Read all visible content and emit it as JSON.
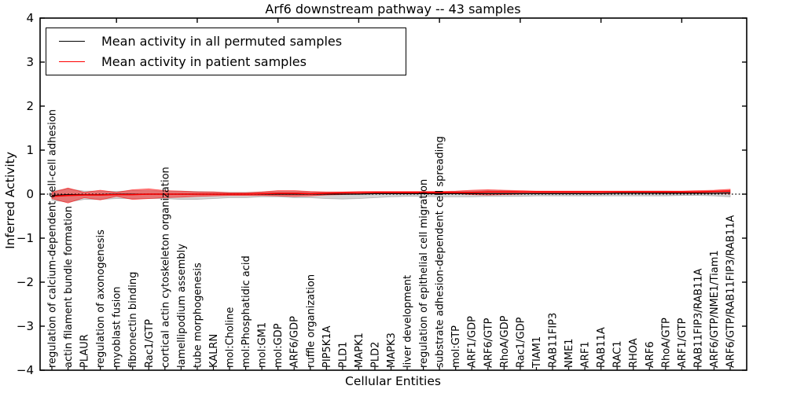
{
  "title": "Arf6 downstream pathway -- 43 samples",
  "axes": {
    "x_label": "Cellular Entities",
    "y_label": "Inferred Activity",
    "y_tick_labels": [
      "4",
      "3",
      "2",
      "1",
      "0",
      "−1",
      "−2",
      "−3",
      "−4"
    ]
  },
  "legend": {
    "items": [
      {
        "label": "Mean activity in all permuted samples",
        "color": "#000000"
      },
      {
        "label": "Mean activity in patient samples",
        "color": "#ff0000"
      }
    ]
  },
  "colors": {
    "permuted_line": "#000000",
    "patient_line": "#ff0000",
    "permuted_band": "#808080",
    "patient_band": "#ff0000",
    "zero_line": "#000000",
    "frame": "#000000",
    "background": "#ffffff"
  },
  "chart_data": {
    "type": "line",
    "title": "Arf6 downstream pathway -- 43 samples",
    "xlabel": "Cellular Entities",
    "ylabel": "Inferred Activity",
    "ylim": [
      -4,
      4
    ],
    "grid": false,
    "legend_position": "upper left",
    "zero_line": {
      "y": 0,
      "style": "dotted"
    },
    "categories": [
      "regulation of calcium-dependent cell-cell adhesion",
      "actin filament bundle formation",
      "PLAUR",
      "regulation of axonogenesis",
      "myoblast fusion",
      "fibronectin binding",
      "Rac1/GTP",
      "cortical actin cytoskeleton organization",
      "lamellipodium assembly",
      "tube morphogenesis",
      "KALRN",
      "mol:Choline",
      "mol:Phosphatidic acid",
      "mol:GM1",
      "mol:GDP",
      "ARF6/GDP",
      "ruffle organization",
      "PIP5K1A",
      "PLD1",
      "MAPK1",
      "PLD2",
      "MAPK3",
      "liver development",
      "regulation of epithelial cell migration",
      "substrate adhesion-dependent cell spreading",
      "mol:GTP",
      "ARF1/GDP",
      "ARF6/GTP",
      "RhoA/GDP",
      "Rac1/GDP",
      "TIAM1",
      "RAB11FIP3",
      "NME1",
      "ARF1",
      "RAB11A",
      "RAC1",
      "RHOA",
      "ARF6",
      "RhoA/GTP",
      "ARF1/GTP",
      "RAB11FIP3/RAB11A",
      "ARF6/GTP/NME1/Tiam1",
      "ARF6/GTP/RAB11FIP3/RAB11A"
    ],
    "series": [
      {
        "id": "permuted_mean",
        "name": "Mean activity in all permuted samples",
        "color": "#000000",
        "values": [
          -0.03,
          -0.01,
          -0.01,
          -0.01,
          0.0,
          0.0,
          0.0,
          0.0,
          0.0,
          0.0,
          0.0,
          0.0,
          0.0,
          0.0,
          0.0,
          0.0,
          0.0,
          0.0,
          0.0,
          0.0,
          0.01,
          0.01,
          0.01,
          0.01,
          0.01,
          0.01,
          0.01,
          0.01,
          0.01,
          0.01,
          0.01,
          0.01,
          0.01,
          0.01,
          0.01,
          0.02,
          0.02,
          0.02,
          0.02,
          0.02,
          0.02,
          0.02,
          0.03
        ]
      },
      {
        "id": "patient_mean",
        "name": "Mean activity in patient samples",
        "color": "#ff0000",
        "values": [
          -0.05,
          -0.03,
          -0.02,
          -0.02,
          -0.01,
          -0.01,
          0.0,
          0.0,
          0.0,
          0.0,
          0.0,
          0.0,
          0.0,
          0.01,
          0.02,
          0.02,
          0.01,
          0.02,
          0.03,
          0.03,
          0.04,
          0.04,
          0.04,
          0.04,
          0.04,
          0.04,
          0.04,
          0.05,
          0.05,
          0.05,
          0.05,
          0.05,
          0.05,
          0.05,
          0.05,
          0.05,
          0.05,
          0.05,
          0.05,
          0.05,
          0.05,
          0.06,
          0.07
        ]
      }
    ],
    "bands": [
      {
        "id": "permuted_band",
        "name": "Permuted samples spread",
        "color": "#808080",
        "opacity": 0.35,
        "hi": [
          0.07,
          0.12,
          0.07,
          0.07,
          0.06,
          0.08,
          0.08,
          0.07,
          0.07,
          0.06,
          0.05,
          0.04,
          0.04,
          0.05,
          0.06,
          0.06,
          0.05,
          0.04,
          0.04,
          0.04,
          0.04,
          0.03,
          0.04,
          0.05,
          0.05,
          0.06,
          0.07,
          0.08,
          0.08,
          0.06,
          0.05,
          0.05,
          0.05,
          0.05,
          0.05,
          0.06,
          0.07,
          0.07,
          0.07,
          0.06,
          0.06,
          0.07,
          0.08
        ],
        "lo": [
          -0.14,
          -0.18,
          -0.12,
          -0.12,
          -0.1,
          -0.1,
          -0.1,
          -0.1,
          -0.12,
          -0.12,
          -0.1,
          -0.08,
          -0.08,
          -0.06,
          -0.06,
          -0.08,
          -0.08,
          -0.1,
          -0.11,
          -0.1,
          -0.08,
          -0.06,
          -0.05,
          -0.05,
          -0.06,
          -0.06,
          -0.06,
          -0.05,
          -0.05,
          -0.05,
          -0.04,
          -0.04,
          -0.04,
          -0.04,
          -0.04,
          -0.04,
          -0.04,
          -0.04,
          -0.04,
          -0.03,
          -0.03,
          -0.04,
          -0.06
        ]
      },
      {
        "id": "patient_band",
        "name": "Patient samples spread",
        "color": "#ff0000",
        "opacity": 0.45,
        "hi": [
          0.04,
          0.14,
          0.04,
          0.09,
          0.04,
          0.1,
          0.12,
          0.08,
          0.07,
          0.05,
          0.05,
          0.03,
          0.03,
          0.05,
          0.08,
          0.08,
          0.06,
          0.05,
          0.05,
          0.06,
          0.06,
          0.06,
          0.06,
          0.06,
          0.06,
          0.07,
          0.09,
          0.1,
          0.09,
          0.08,
          0.07,
          0.07,
          0.07,
          0.07,
          0.07,
          0.07,
          0.07,
          0.07,
          0.07,
          0.07,
          0.08,
          0.09,
          0.11
        ],
        "lo": [
          -0.1,
          -0.2,
          -0.08,
          -0.13,
          -0.05,
          -0.12,
          -0.1,
          -0.08,
          -0.07,
          -0.05,
          -0.04,
          -0.03,
          -0.03,
          -0.03,
          -0.04,
          -0.05,
          -0.04,
          -0.02,
          -0.01,
          0.0,
          0.01,
          0.01,
          0.02,
          0.02,
          0.02,
          0.01,
          -0.01,
          -0.02,
          -0.01,
          0.0,
          0.02,
          0.02,
          0.02,
          0.02,
          0.02,
          0.02,
          0.02,
          0.02,
          0.03,
          0.03,
          0.03,
          0.02,
          0.01
        ]
      }
    ]
  }
}
